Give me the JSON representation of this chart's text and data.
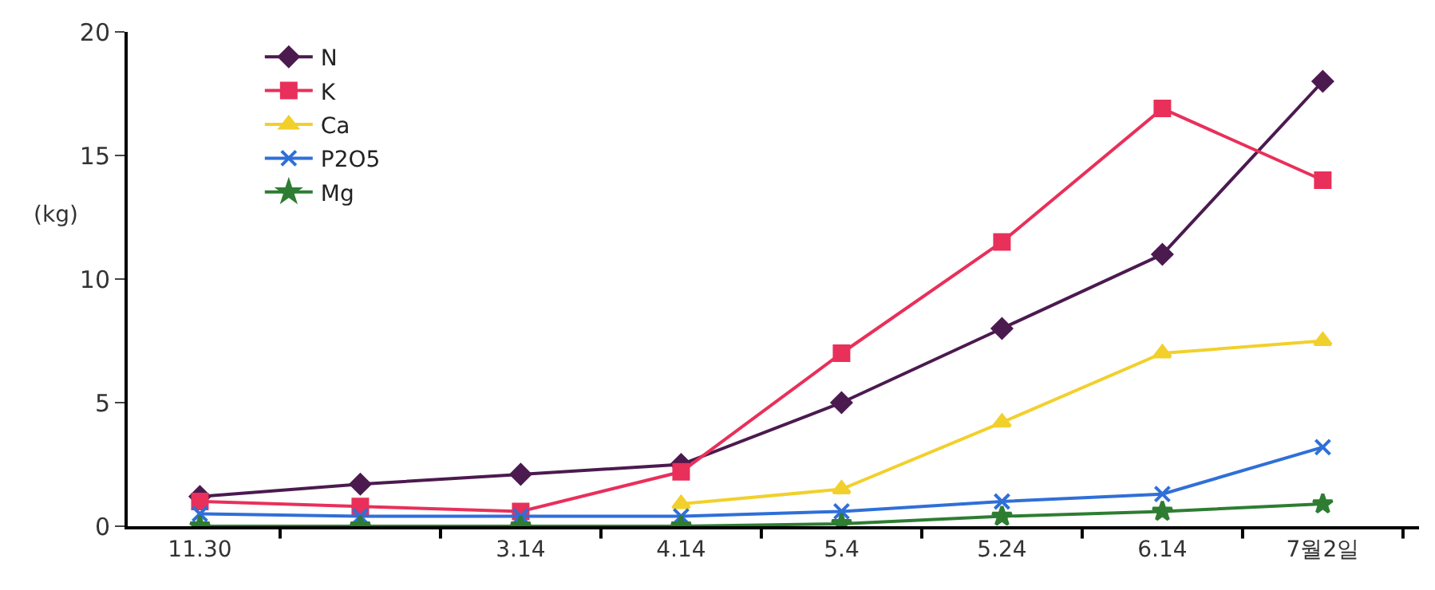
{
  "chart_data": {
    "type": "line",
    "ylabel": "(kg)",
    "categories": [
      "11.30",
      null,
      "3.14",
      "4.14",
      "5.4",
      "5.24",
      "6.14",
      "7월2일"
    ],
    "series": [
      {
        "name": "N",
        "color": "#4b1a4f",
        "marker": "diamond",
        "values": [
          1.2,
          1.7,
          2.1,
          2.5,
          5.0,
          8.0,
          11.0,
          18.0
        ]
      },
      {
        "name": "K",
        "color": "#e8305a",
        "marker": "square",
        "values": [
          1.0,
          0.8,
          0.6,
          2.2,
          7.0,
          11.5,
          16.9,
          14.0
        ]
      },
      {
        "name": "Ca",
        "color": "#f2d02c",
        "marker": "triangle",
        "values": [
          null,
          null,
          null,
          0.9,
          1.5,
          4.2,
          7.0,
          7.5
        ]
      },
      {
        "name": "P2O5",
        "color": "#2f6fd8",
        "marker": "cross",
        "values": [
          0.5,
          0.4,
          0.4,
          0.4,
          0.6,
          1.0,
          1.3,
          3.2
        ]
      },
      {
        "name": "Mg",
        "color": "#2e7d32",
        "marker": "star",
        "values": [
          0.0,
          0.0,
          0.0,
          0.0,
          0.1,
          0.4,
          0.6,
          0.9
        ]
      }
    ],
    "ylim": [
      0,
      20
    ],
    "yticks": [
      0,
      5,
      10,
      15,
      20
    ],
    "legend": "top left"
  }
}
